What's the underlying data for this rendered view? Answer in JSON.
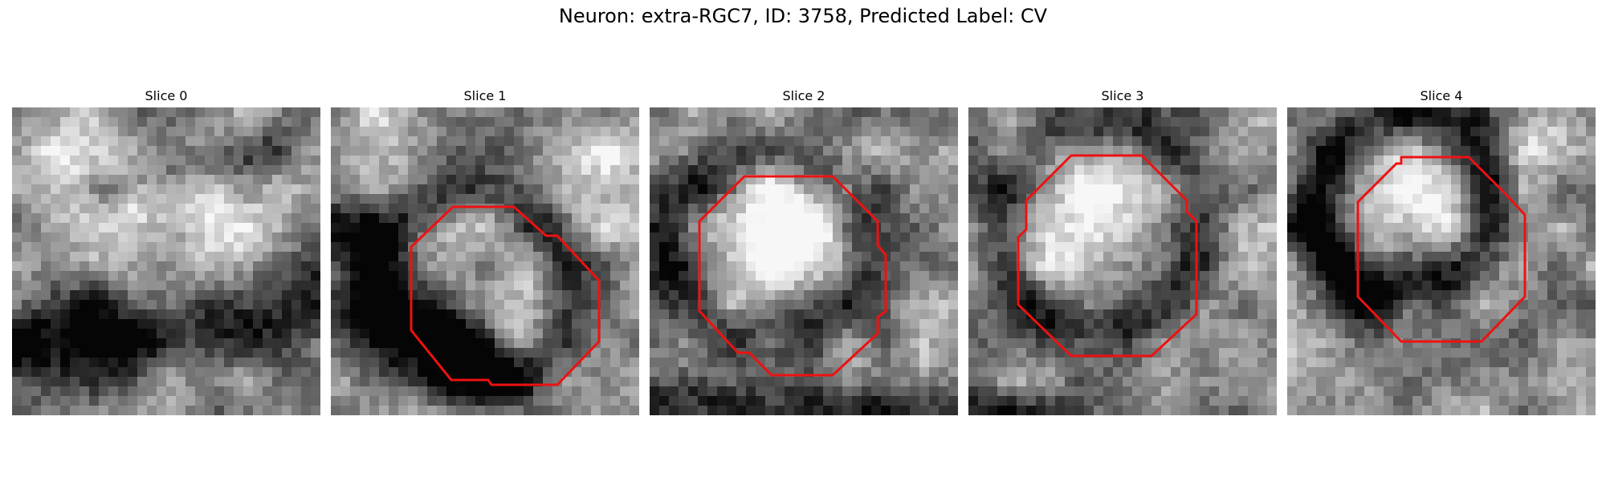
{
  "suptitle": "Neuron: extra-RGC7, ID: 3758, Predicted Label: CV",
  "panels": [
    {
      "title": "Slice 0",
      "has_contour": false
    },
    {
      "title": "Slice 1",
      "has_contour": true
    },
    {
      "title": "Slice 2",
      "has_contour": true
    },
    {
      "title": "Slice 3",
      "has_contour": true
    },
    {
      "title": "Slice 4",
      "has_contour": true
    }
  ],
  "colors": {
    "contour": "#ee1111",
    "background": "#ffffff"
  }
}
